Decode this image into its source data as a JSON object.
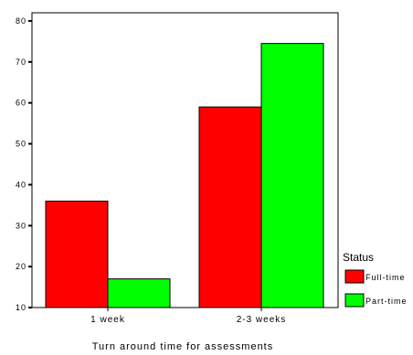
{
  "chart_data": {
    "type": "bar",
    "title": "",
    "xlabel": "Turn around time for assessments",
    "ylabel": "",
    "categories": [
      "1 week",
      "2-3 weeks"
    ],
    "series": [
      {
        "name": "Full-time",
        "values": [
          36,
          59
        ],
        "color": "#ff0000"
      },
      {
        "name": "Part-time",
        "values": [
          17,
          74.5
        ],
        "color": "#00ff00"
      }
    ],
    "yticks": [
      10,
      20,
      30,
      40,
      50,
      60,
      70,
      80
    ],
    "ylim": [
      10,
      82
    ],
    "grid": false,
    "legend": {
      "title": "Status",
      "placement": "right"
    }
  }
}
